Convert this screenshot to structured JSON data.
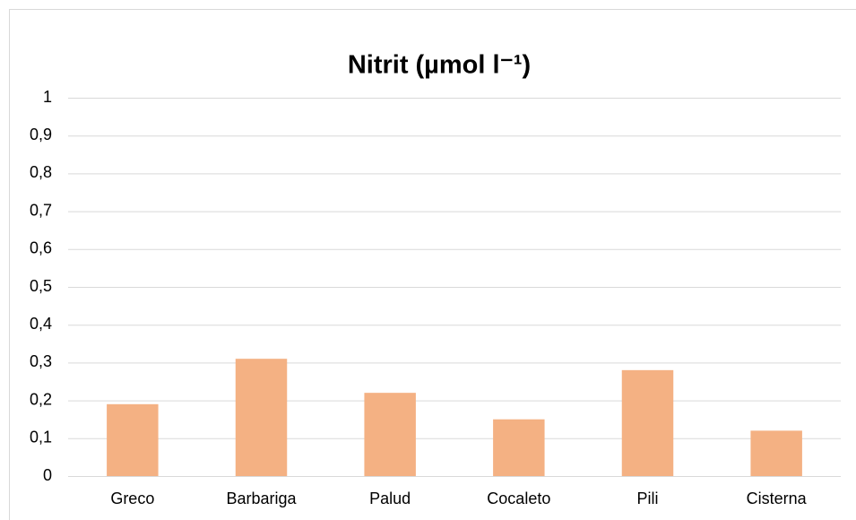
{
  "chart_data": {
    "type": "bar",
    "title": "Nitrit (µmol l⁻¹)",
    "categories": [
      "Greco",
      "Barbariga",
      "Palud",
      "Cocaleto",
      "Pili",
      "Cisterna"
    ],
    "values": [
      0.19,
      0.31,
      0.22,
      0.15,
      0.28,
      0.12
    ],
    "color": "#f4b183",
    "ylim": [
      0,
      1
    ],
    "yticks": [
      0,
      {
        "value": 0.1,
        "label": "0,1"
      },
      {
        "value": 0.2,
        "label": "0,2"
      },
      {
        "value": 0.3,
        "label": "0,3"
      },
      {
        "value": 0.4,
        "label": "0,4"
      },
      {
        "value": 0.5,
        "label": "0,5"
      },
      {
        "value": 0.6,
        "label": "0,6"
      },
      {
        "value": 0.7,
        "label": "0,7"
      },
      {
        "value": 0.8,
        "label": "0,8"
      },
      {
        "value": 0.9,
        "label": "0,9"
      },
      1
    ],
    "grid": true
  }
}
